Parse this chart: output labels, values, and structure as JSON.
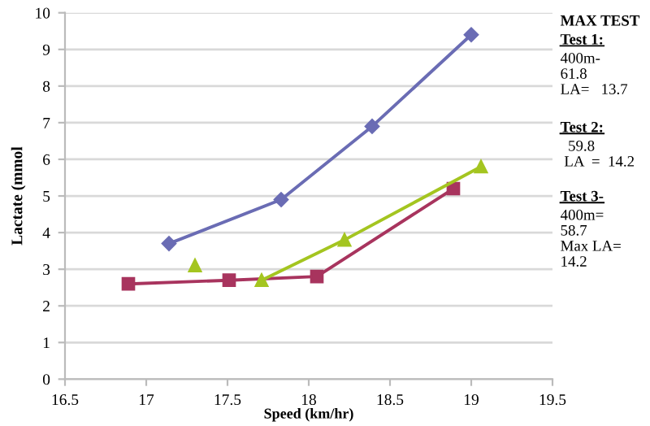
{
  "chart_data": {
    "type": "line",
    "xlabel": "Speed (km/hr)",
    "ylabel": "Lactate (mmol",
    "xlim": [
      16.5,
      19.5
    ],
    "xticks": [
      16.5,
      17,
      17.5,
      18,
      18.5,
      19,
      19.5
    ],
    "ylim": [
      0,
      10
    ],
    "yticks": [
      0,
      1,
      2,
      3,
      4,
      5,
      6,
      7,
      8,
      9,
      10
    ],
    "grid": "y",
    "legend": false,
    "series": [
      {
        "color": "#6a6cb4",
        "marker": "diamond",
        "x": [
          17.14,
          17.83,
          18.39,
          19.0
        ],
        "values": [
          3.7,
          4.9,
          6.9,
          9.4
        ]
      },
      {
        "color": "#a8345e",
        "marker": "square",
        "x": [
          16.89,
          17.51,
          18.05,
          18.89
        ],
        "values": [
          2.6,
          2.7,
          2.8,
          5.2
        ]
      },
      {
        "color": "#a4c520",
        "marker": "triangle",
        "x": [
          17.3,
          17.5,
          17.71,
          18.22,
          19.06
        ],
        "values": [
          3.1,
          null,
          2.7,
          3.8,
          5.8
        ]
      }
    ],
    "annotations": [
      "MAX TEST",
      "Test 1:",
      "400m-\n61.8\nLA=   13.7",
      "Test 2:",
      "  59.8\n LA  =  14.2",
      "Test 3-",
      "400m=\n58.7\nMax LA=\n14.2"
    ]
  }
}
